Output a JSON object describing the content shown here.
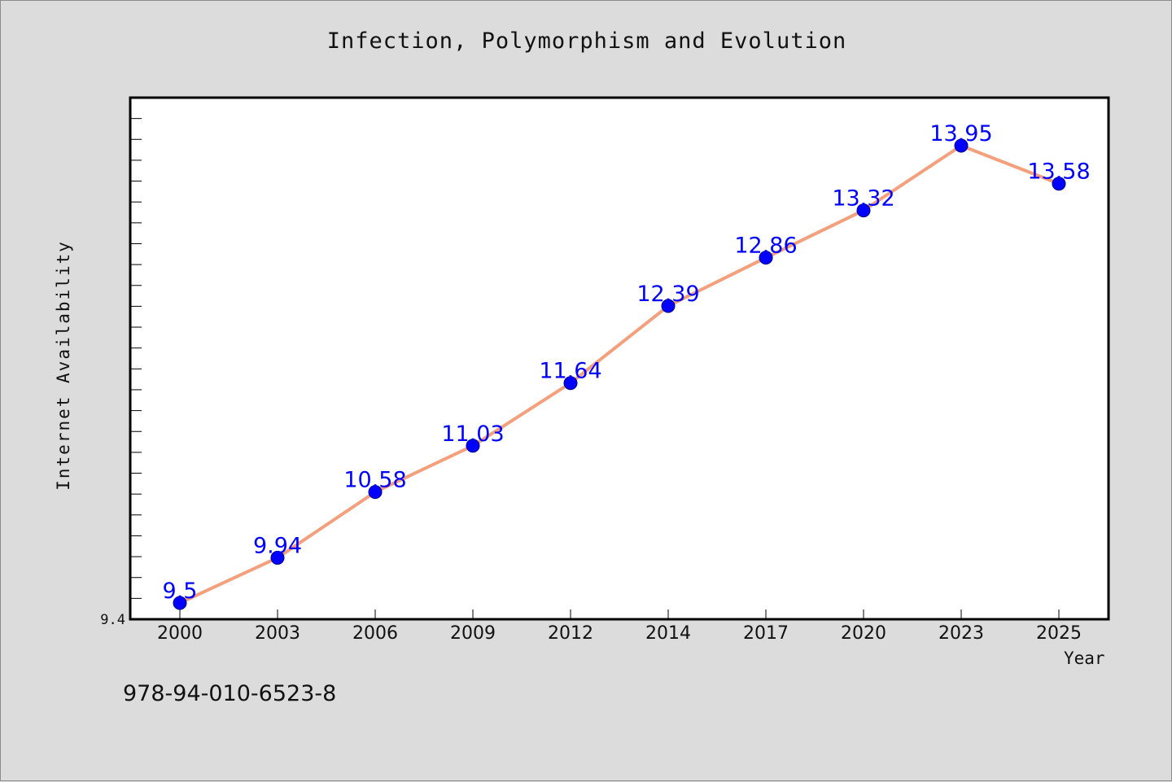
{
  "chart_data": {
    "type": "line",
    "title": "Infection, Polymorphism and Evolution",
    "xlabel": "Year",
    "ylabel": "Internet Availability",
    "categories": [
      "2000",
      "2003",
      "2006",
      "2009",
      "2012",
      "2014",
      "2017",
      "2020",
      "2023",
      "2025"
    ],
    "values": [
      9.5,
      9.94,
      10.58,
      11.03,
      11.64,
      12.39,
      12.86,
      13.32,
      13.95,
      13.58
    ],
    "data_labels": [
      "9.5",
      "9.94",
      "10.58",
      "11.03",
      "11.64",
      "12.39",
      "12.86",
      "13.32",
      "13.95",
      "13.58"
    ],
    "y_tick_labels": [
      "9.4"
    ],
    "ylim": [
      9.4,
      14.4
    ],
    "grid": false,
    "legend": "none",
    "line_color": "#f4a07c",
    "marker_color": "#0000ff",
    "label_color": "#0000ff"
  },
  "footer": {
    "isbn": "978-94-010-6523-8"
  }
}
